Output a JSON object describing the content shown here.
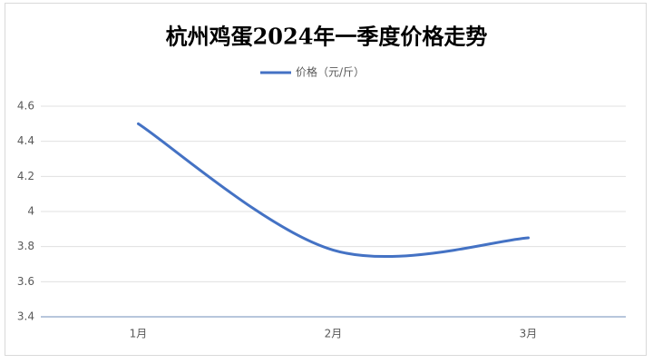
{
  "chart_data": {
    "type": "line",
    "title": "杭州鸡蛋2024年一季度价格走势",
    "categories": [
      "1月",
      "2月",
      "3月"
    ],
    "series": [
      {
        "name": "价格（元/斤）",
        "color": "#4472c4",
        "values": [
          4.5,
          3.78,
          3.85
        ]
      }
    ],
    "ylim": [
      3.4,
      4.6
    ],
    "yticks": [
      3.4,
      3.6,
      3.8,
      4,
      4.2,
      4.4,
      4.6
    ],
    "grid": true,
    "smooth": true,
    "legend": "top"
  }
}
